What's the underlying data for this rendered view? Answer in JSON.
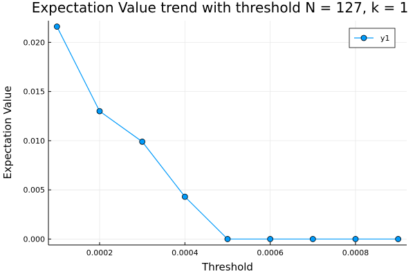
{
  "colors": {
    "series": "#009AFA",
    "marker_stroke": "#000000",
    "grid": "#E8E8E8",
    "axis": "#000000",
    "background": "#FFFFFF"
  },
  "chart_data": {
    "type": "line",
    "title": "Expectation Value trend with threshold N = 127, k = 1",
    "xlabel": "Threshold",
    "ylabel": "Expectation Value",
    "xlim": [
      8e-05,
      0.00092
    ],
    "ylim": [
      -0.0006,
      0.0222
    ],
    "xticks": [
      0.0002,
      0.0004,
      0.0006,
      0.0008
    ],
    "xtick_labels": [
      "0.0002",
      "0.0004",
      "0.0006",
      "0.0008"
    ],
    "yticks": [
      0.0,
      0.005,
      0.01,
      0.015,
      0.02
    ],
    "ytick_labels": [
      "0.000",
      "0.005",
      "0.010",
      "0.015",
      "0.020"
    ],
    "grid": true,
    "legend_position": "top-right",
    "markers": true,
    "x": [
      0.0001,
      0.0002,
      0.0003,
      0.0004,
      0.0005,
      0.0006,
      0.0007,
      0.0008,
      0.0009
    ],
    "series": [
      {
        "name": "y1",
        "values": [
          0.0216,
          0.013,
          0.0099,
          0.0043,
          0.0,
          0.0,
          0.0,
          0.0,
          0.0
        ]
      }
    ]
  }
}
